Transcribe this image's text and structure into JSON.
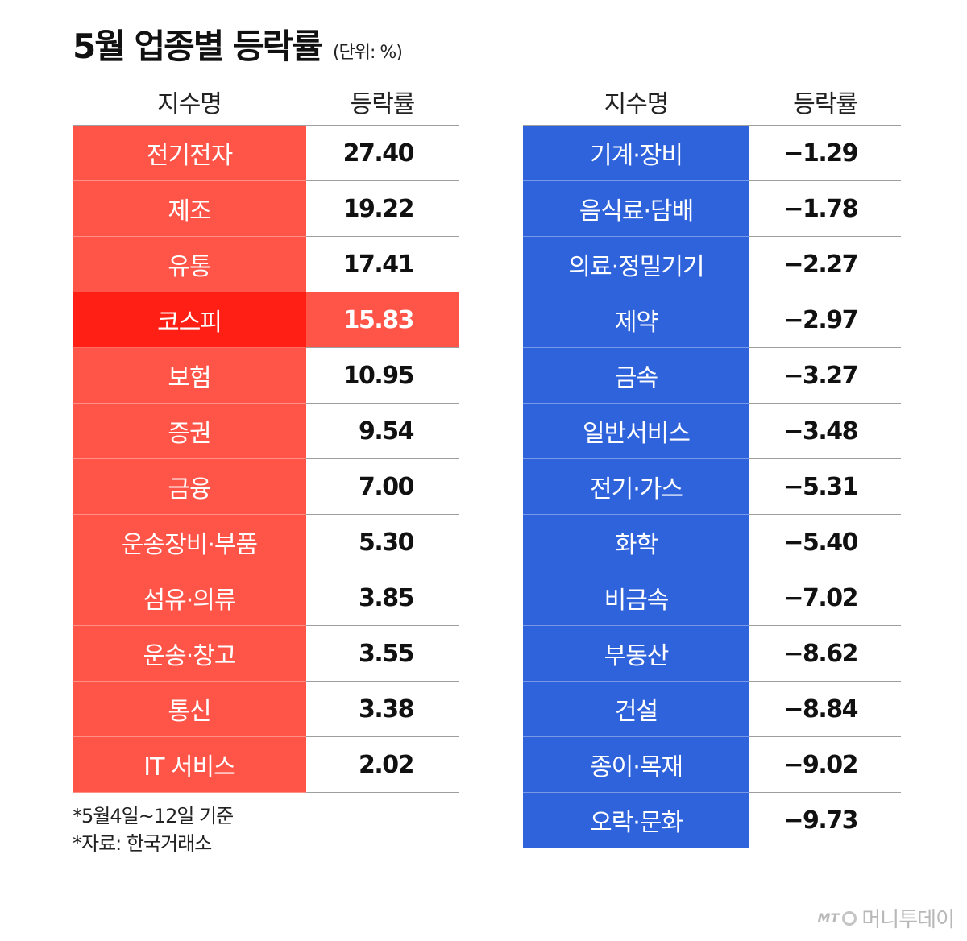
{
  "chart_data": {
    "type": "table",
    "title": "5월 업종별 등락률",
    "unit": "(단위: %)",
    "columns": [
      "지수명",
      "등락률"
    ],
    "left_table": [
      {
        "name": "전기전자",
        "value": "27.40"
      },
      {
        "name": "제조",
        "value": "19.22"
      },
      {
        "name": "유통",
        "value": "17.41"
      },
      {
        "name": "코스피",
        "value": "15.83",
        "highlight": true
      },
      {
        "name": "보험",
        "value": "10.95"
      },
      {
        "name": "증권",
        "value": "9.54"
      },
      {
        "name": "금융",
        "value": "7.00"
      },
      {
        "name": "운송장비·부품",
        "value": "5.30"
      },
      {
        "name": "섬유·의류",
        "value": "3.85"
      },
      {
        "name": "운송·창고",
        "value": "3.55"
      },
      {
        "name": "통신",
        "value": "3.38"
      },
      {
        "name": "IT 서비스",
        "value": "2.02"
      }
    ],
    "right_table": [
      {
        "name": "기계·장비",
        "value": "−1.29"
      },
      {
        "name": "음식료·담배",
        "value": "−1.78"
      },
      {
        "name": "의료·정밀기기",
        "value": "−2.27"
      },
      {
        "name": "제약",
        "value": "−2.97"
      },
      {
        "name": "금속",
        "value": "−3.27"
      },
      {
        "name": "일반서비스",
        "value": "−3.48"
      },
      {
        "name": "전기·가스",
        "value": "−5.31"
      },
      {
        "name": "화학",
        "value": "−5.40"
      },
      {
        "name": "비금속",
        "value": "−7.02"
      },
      {
        "name": "부동산",
        "value": "−8.62"
      },
      {
        "name": "건설",
        "value": "−8.84"
      },
      {
        "name": "종이·목재",
        "value": "−9.02"
      },
      {
        "name": "오락·문화",
        "value": "−9.73"
      }
    ],
    "notes": [
      "*5월4일~12일 기준",
      "*자료: 한국거래소"
    ],
    "colors": {
      "positive": "#ff5549",
      "highlight": "#ff1f14",
      "negative": "#2f63dc"
    }
  },
  "brand": {
    "mt": "MT",
    "name": "머니투데이"
  }
}
